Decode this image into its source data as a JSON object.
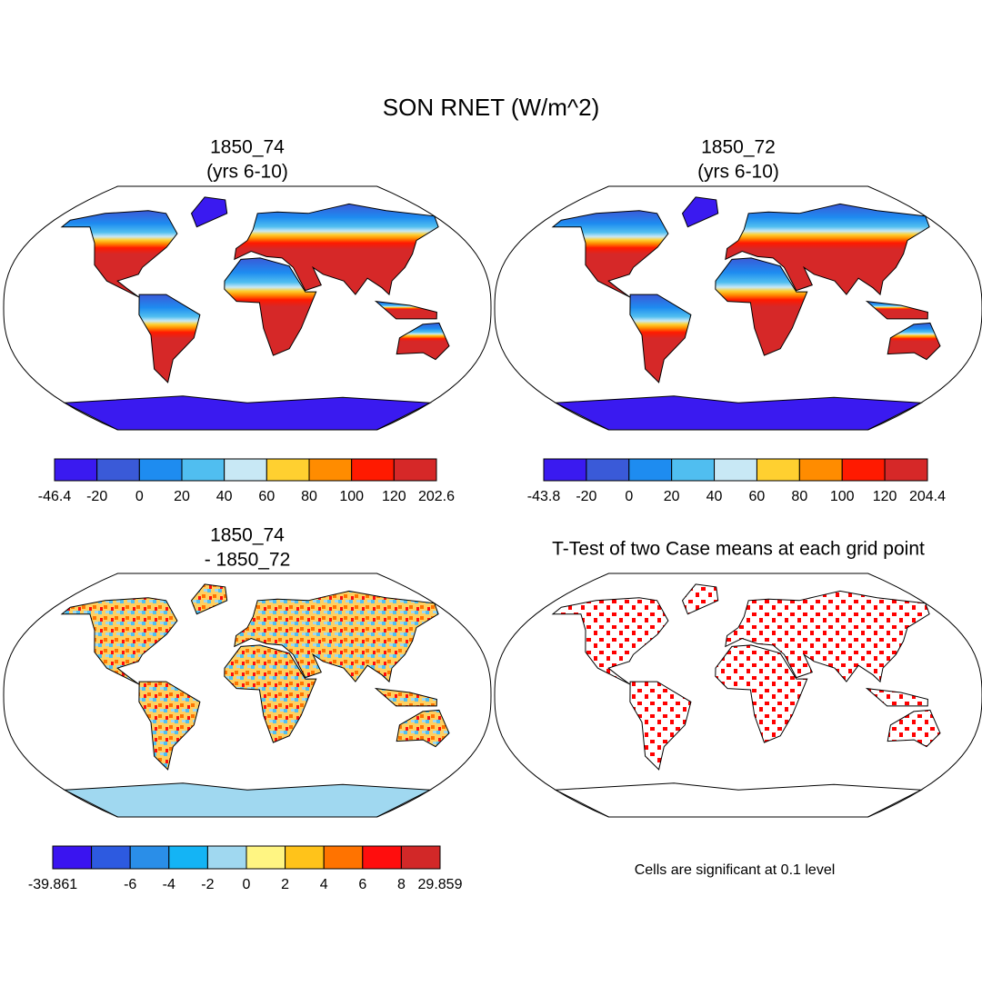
{
  "title": "SON RNET (W/m^2)",
  "panels": [
    {
      "title": [
        "1850_74",
        "(yrs 6-10)"
      ],
      "colorbar": {
        "colors": [
          "#3a1af0",
          "#3a5ad8",
          "#1e8cf0",
          "#50bef0",
          "#c8e8f5",
          "#ffd030",
          "#ff8c00",
          "#ff1a00",
          "#d62828"
        ],
        "labels": [
          -46.4,
          -20,
          0,
          20,
          40,
          60,
          80,
          100,
          120,
          202.6
        ]
      }
    },
    {
      "title": [
        "1850_72",
        "(yrs 6-10)"
      ],
      "colorbar": {
        "colors": [
          "#3a1af0",
          "#3a5ad8",
          "#1e8cf0",
          "#50bef0",
          "#c8e8f5",
          "#ffd030",
          "#ff8c00",
          "#ff1a00",
          "#d62828"
        ],
        "labels": [
          -43.8,
          -20,
          0,
          20,
          40,
          60,
          80,
          100,
          120,
          204.4
        ]
      }
    },
    {
      "title": [
        "1850_74",
        "- 1850_72"
      ],
      "colorbar": {
        "colors": [
          "#3a14f0",
          "#2d5ae0",
          "#2a8ee8",
          "#14b4f5",
          "#a0d8f0",
          "#fff582",
          "#ffc31a",
          "#ff7300",
          "#ff0d0d",
          "#d22828"
        ],
        "labels": [
          -39.861,
          null,
          -6,
          -4,
          -2,
          0,
          2,
          4,
          6,
          8,
          29.859
        ]
      }
    },
    {
      "title": [
        "T-Test of two Case means at each grid point"
      ],
      "note": "Cells are significant at 0.1 level"
    }
  ]
}
